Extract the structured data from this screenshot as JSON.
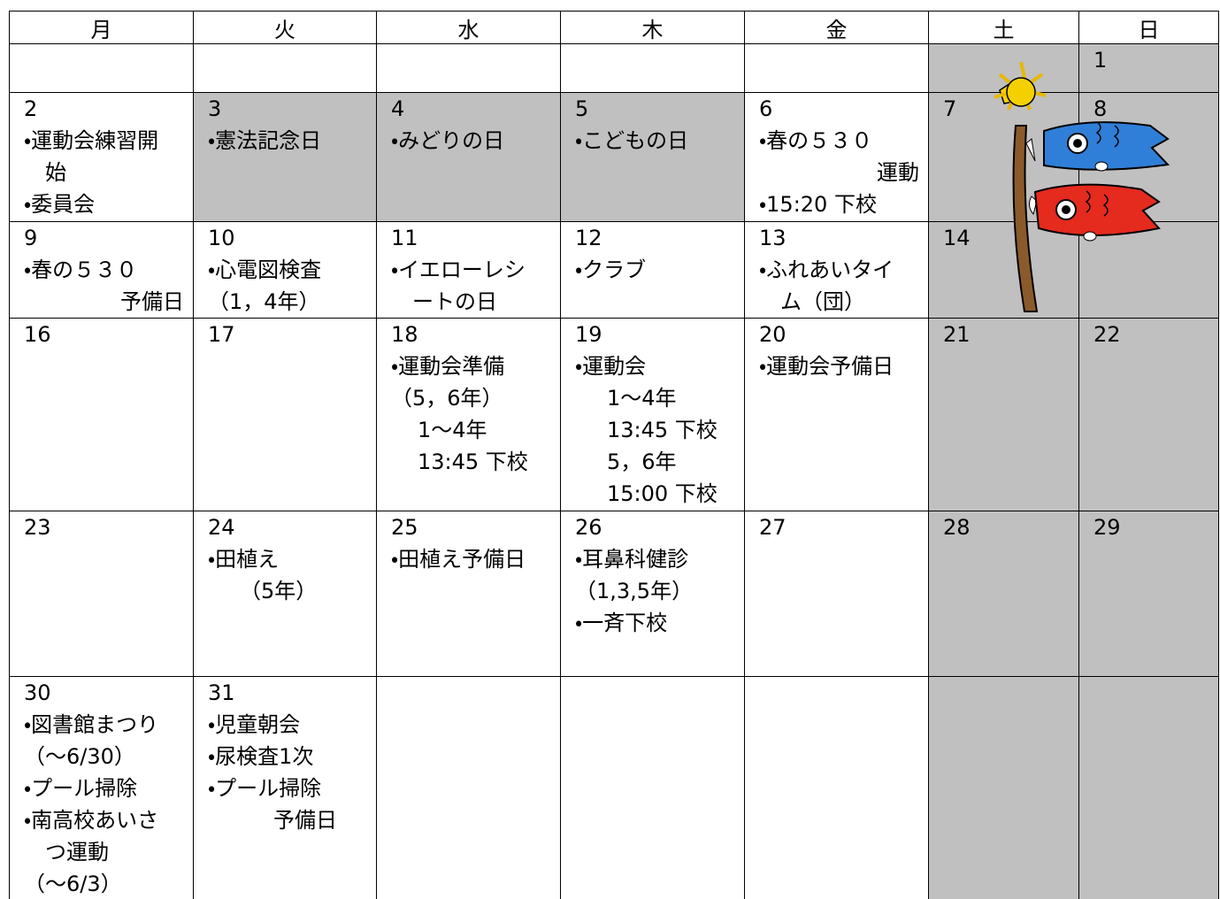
{
  "header": [
    "月",
    "火",
    "水",
    "木",
    "金",
    "土",
    "日"
  ],
  "weeks": [
    [
      null,
      null,
      null,
      null,
      null,
      null,
      {
        "date": "1"
      }
    ],
    [
      {
        "date": "2",
        "lines": [
          "・運動会練習開",
          "始",
          "・委員会"
        ]
      },
      {
        "date": "3",
        "lines": [
          "・憲法記念日"
        ]
      },
      {
        "date": "4",
        "lines": [
          "・みどりの日"
        ]
      },
      {
        "date": "5",
        "lines": [
          "・こどもの日"
        ]
      },
      {
        "date": "6",
        "lines": [
          "・春の５３０",
          "運動",
          "・15:20 下校"
        ]
      },
      {
        "date": "7"
      },
      {
        "date": "8"
      }
    ],
    [
      {
        "date": "9",
        "lines": [
          "・春の５３０",
          "予備日"
        ]
      },
      {
        "date": "10",
        "lines": [
          "・心電図検査",
          "（1，4年）"
        ]
      },
      {
        "date": "11",
        "lines": [
          "・イエローレシ",
          "ートの日"
        ]
      },
      {
        "date": "12",
        "lines": [
          "・クラブ"
        ]
      },
      {
        "date": "13",
        "lines": [
          "・ふれあいタイ",
          "ム（団）"
        ]
      },
      {
        "date": "14"
      },
      null
    ],
    [
      {
        "date": "16"
      },
      {
        "date": "17"
      },
      {
        "date": "18",
        "lines": [
          "・運動会準備",
          "（5，6年）",
          "1～4年",
          "13:45 下校"
        ]
      },
      {
        "date": "19",
        "lines": [
          "・運動会",
          "1～4年",
          "13:45 下校",
          "5，6年",
          "15:00 下校"
        ]
      },
      {
        "date": "20",
        "lines": [
          "・運動会予備日"
        ]
      },
      {
        "date": "21"
      },
      {
        "date": "22"
      }
    ],
    [
      {
        "date": "23"
      },
      {
        "date": "24",
        "lines": [
          "・田植え",
          "（5年）"
        ]
      },
      {
        "date": "25",
        "lines": [
          "・田植え予備日"
        ]
      },
      {
        "date": "26",
        "lines": [
          "・耳鼻科健診",
          "（1,3,5年）",
          "・一斉下校"
        ]
      },
      {
        "date": "27"
      },
      {
        "date": "28"
      },
      {
        "date": "29"
      }
    ],
    [
      {
        "date": "30",
        "lines": [
          "・図書館まつり",
          "（～6/30）",
          "・プール掃除",
          "・南高校あいさ",
          "つ運動",
          "（～6/3）"
        ]
      },
      {
        "date": "31",
        "lines": [
          "・児童朝会",
          "・尿検査1次",
          "・プール掃除",
          "予備日"
        ]
      },
      null,
      null,
      null,
      null,
      null
    ]
  ]
}
